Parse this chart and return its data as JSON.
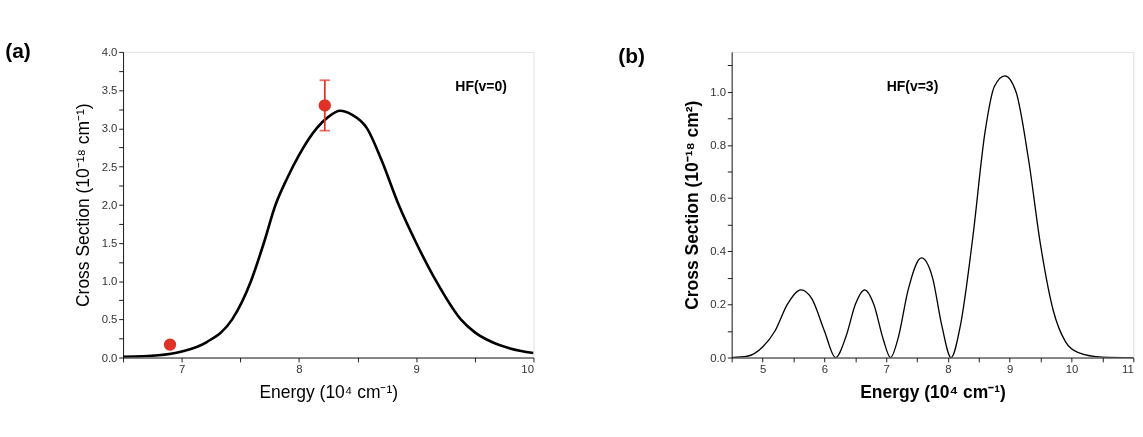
{
  "chart_data": [
    {
      "type": "line",
      "title": "(a)",
      "xlabel": "Energy (10⁴ cm⁻¹)",
      "ylabel": "Cross Section (10⁻¹⁸ cm⁻¹)",
      "annotations": [
        "HF(v=0)"
      ],
      "xlim": [
        6.5,
        10
      ],
      "ylim": [
        0,
        4
      ],
      "xticks": [
        {
          "value": 6.5,
          "label": null
        },
        7,
        {
          "value": 7.5,
          "label": null
        },
        8,
        {
          "value": 8.5,
          "label": null
        },
        9,
        {
          "value": 9.5,
          "label": null
        },
        10
      ],
      "yticks": [
        {
          "value": 0,
          "label": "0.0"
        },
        {
          "value": 0.25,
          "label": null
        },
        0.5,
        {
          "value": 0.75,
          "label": null
        },
        {
          "value": 1,
          "label": "1.0"
        },
        {
          "value": 1.25,
          "label": null
        },
        1.5,
        {
          "value": 1.75,
          "label": null
        },
        {
          "value": 2,
          "label": "2.0"
        },
        {
          "value": 2.25,
          "label": null
        },
        2.5,
        {
          "value": 2.75,
          "label": null
        },
        {
          "value": 3,
          "label": "3.0"
        },
        {
          "value": 3.25,
          "label": null
        },
        3.5,
        {
          "value": 3.75,
          "label": null
        },
        {
          "value": 4,
          "label": "4.0"
        }
      ],
      "grid": false,
      "series": [
        {
          "color": "#000000",
          "x": [
            6.5,
            6.8,
            7.0,
            7.21,
            7.43,
            7.59,
            7.7,
            7.8,
            7.9,
            8.0,
            8.15,
            8.25,
            8.35,
            8.45,
            8.58,
            8.7,
            8.85,
            9.0,
            9.17,
            9.38,
            9.5,
            9.65,
            9.8,
            10.0
          ],
          "values": [
            0.01,
            0.03,
            0.08,
            0.2,
            0.5,
            1.0,
            1.5,
            2.0,
            2.35,
            2.65,
            3.0,
            3.15,
            3.23,
            3.18,
            3.0,
            2.6,
            2.0,
            1.5,
            1.0,
            0.5,
            0.33,
            0.2,
            0.12,
            0.06
          ]
        },
        {
          "type": "scatter",
          "color": "#e03127",
          "marker": "circle",
          "x": [
            6.9,
            8.22
          ],
          "values": [
            0.17,
            3.3
          ],
          "errors": [
            null,
            [
              2.97,
              3.63
            ]
          ]
        }
      ]
    },
    {
      "type": "line",
      "title": "(b)",
      "xlabel": "Energy (10⁴ cm⁻¹)",
      "ylabel": "Cross Section (10⁻¹⁸ cm²)",
      "annotations": [
        "HF(v=3)"
      ],
      "xlim": [
        4.5,
        11
      ],
      "ylim": [
        0,
        1.15
      ],
      "xticks": [
        {
          "value": 4.5,
          "label": null
        },
        5,
        {
          "value": 5.5,
          "label": null
        },
        6,
        {
          "value": 6.5,
          "label": null
        },
        7,
        {
          "value": 7.5,
          "label": null
        },
        8,
        {
          "value": 8.5,
          "label": null
        },
        9,
        {
          "value": 9.5,
          "label": null
        },
        10,
        {
          "value": 10.5,
          "label": null
        },
        11
      ],
      "yticks": [
        {
          "value": 0,
          "label": "0.0"
        },
        {
          "value": 0.1,
          "label": null
        },
        0.2,
        {
          "value": 0.3,
          "label": null
        },
        0.4,
        {
          "value": 0.5,
          "label": null
        },
        0.6,
        {
          "value": 0.7,
          "label": null
        },
        0.8,
        {
          "value": 0.9,
          "label": null
        },
        {
          "value": 1,
          "label": "1.0"
        },
        {
          "value": 1.1,
          "label": null
        }
      ],
      "grid": false,
      "series": [
        {
          "color": "#000000",
          "x": [
            4.5,
            4.75,
            5.0,
            5.2,
            5.4,
            5.62,
            5.8,
            6.0,
            6.18,
            6.35,
            6.5,
            6.65,
            6.8,
            6.95,
            7.07,
            7.2,
            7.35,
            7.57,
            7.75,
            7.9,
            8.05,
            8.2,
            8.4,
            8.6,
            8.75,
            8.92,
            9.1,
            9.3,
            9.5,
            9.7,
            9.9,
            10.1,
            10.5,
            11.0
          ],
          "values": [
            0,
            0.005,
            0.04,
            0.1,
            0.2,
            0.255,
            0.22,
            0.1,
            0,
            0.08,
            0.2,
            0.255,
            0.2,
            0.07,
            0,
            0.08,
            0.25,
            0.375,
            0.3,
            0.12,
            0,
            0.12,
            0.45,
            0.85,
            1.02,
            1.06,
            1.0,
            0.75,
            0.42,
            0.18,
            0.06,
            0.02,
            0.002,
            0
          ]
        }
      ]
    }
  ]
}
